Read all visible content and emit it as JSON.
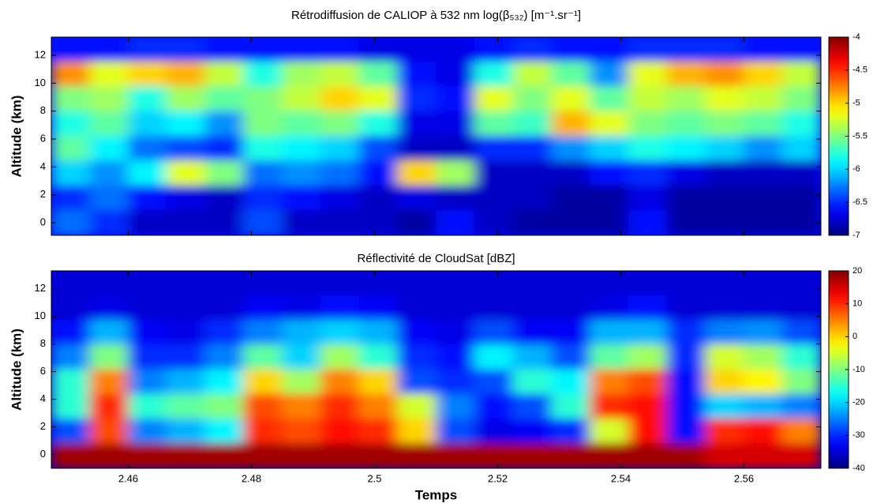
{
  "chart_data": [
    {
      "type": "heatmap",
      "title": "Rétrodiffusion de CALIOP à 532 nm log(β₅₃₂) [m⁻¹.sr⁻¹]",
      "ylabel": "Altitude (km)",
      "xlim": [
        2.4475,
        2.5725
      ],
      "ylim": [
        -0.9,
        13.3
      ],
      "xticks": [
        2.46,
        2.48,
        2.5,
        2.52,
        2.54,
        2.56
      ],
      "yticks": [
        0,
        2,
        4,
        6,
        8,
        10,
        12
      ],
      "clim": [
        -7,
        -4
      ],
      "cticks": [
        -4,
        -4.5,
        -5,
        -5.5,
        -6,
        -6.5,
        -7
      ],
      "colormap": "jet",
      "z": [
        [
          -6.6,
          -6.6,
          -6.5,
          -6.5,
          -6.6,
          -6.6,
          -6.6,
          -6.6,
          -6.7,
          -6.7,
          -6.7,
          -6.6,
          -6.5,
          -6.6,
          -6.6,
          -6.5,
          -6.5,
          -6.5,
          -6.6,
          -6.6
        ],
        [
          -4.8,
          -5.2,
          -5.0,
          -4.9,
          -5.3,
          -5.8,
          -5.4,
          -5.3,
          -5.6,
          -6.6,
          -6.7,
          -5.8,
          -5.3,
          -5.6,
          -6.2,
          -5.2,
          -4.9,
          -4.8,
          -5.0,
          -5.3
        ],
        [
          -5.5,
          -5.4,
          -5.8,
          -5.4,
          -5.6,
          -5.5,
          -5.3,
          -5.0,
          -5.2,
          -6.5,
          -6.6,
          -5.2,
          -5.5,
          -5.2,
          -5.6,
          -5.3,
          -5.4,
          -5.2,
          -5.3,
          -5.5
        ],
        [
          -5.8,
          -5.6,
          -6.0,
          -5.9,
          -6.2,
          -5.5,
          -5.6,
          -5.5,
          -5.8,
          -6.7,
          -6.7,
          -5.6,
          -5.7,
          -4.9,
          -5.2,
          -5.5,
          -5.6,
          -5.5,
          -5.6,
          -5.8
        ],
        [
          -5.6,
          -5.9,
          -6.3,
          -6.4,
          -6.5,
          -5.8,
          -5.9,
          -6.0,
          -6.4,
          -6.8,
          -6.8,
          -6.5,
          -6.5,
          -6.2,
          -6.0,
          -5.8,
          -5.9,
          -6.0,
          -6.2,
          -6.0
        ],
        [
          -6.0,
          -6.2,
          -5.9,
          -5.2,
          -5.5,
          -6.3,
          -6.2,
          -6.3,
          -6.6,
          -5.0,
          -5.4,
          -6.8,
          -6.8,
          -6.8,
          -6.6,
          -6.5,
          -6.7,
          -6.8,
          -6.8,
          -6.8
        ],
        [
          -6.5,
          -6.3,
          -6.6,
          -6.7,
          -6.8,
          -6.5,
          -6.6,
          -6.7,
          -6.8,
          -6.7,
          -6.8,
          -6.8,
          -6.8,
          -6.9,
          -6.9,
          -6.7,
          -6.9,
          -6.9,
          -6.9,
          -6.9
        ],
        [
          -6.3,
          -6.5,
          -6.8,
          -6.8,
          -6.8,
          -6.4,
          -6.8,
          -6.8,
          -6.8,
          -6.9,
          -6.6,
          -6.8,
          -6.9,
          -6.9,
          -6.9,
          -6.6,
          -6.9,
          -6.9,
          -6.9,
          -6.9
        ]
      ]
    },
    {
      "type": "heatmap",
      "title": "Réflectivité de CloudSat [dBZ]",
      "ylabel": "Altitude (km)",
      "xlabel": "Temps",
      "xlim": [
        2.4475,
        2.5725
      ],
      "ylim": [
        -1,
        13.3
      ],
      "xticks": [
        2.46,
        2.48,
        2.5,
        2.52,
        2.54,
        2.56
      ],
      "yticks": [
        0,
        2,
        4,
        6,
        8,
        10,
        12
      ],
      "clim": [
        -40,
        20
      ],
      "cticks": [
        20,
        10,
        0,
        -10,
        -20,
        -30,
        -40
      ],
      "colormap": "jet",
      "z": [
        [
          -35,
          -35,
          -35,
          -35,
          -35,
          -35,
          -35,
          -35,
          -35,
          -35,
          -35,
          -35,
          -35,
          -35,
          -35,
          -35,
          -35,
          -35,
          -35,
          -35
        ],
        [
          -35,
          -34,
          -35,
          -35,
          -35,
          -33,
          -34,
          -32,
          -33,
          -35,
          -35,
          -35,
          -35,
          -35,
          -34,
          -32,
          -35,
          -35,
          -35,
          -35
        ],
        [
          -32,
          -22,
          -33,
          -34,
          -30,
          -25,
          -22,
          -20,
          -22,
          -33,
          -34,
          -28,
          -33,
          -33,
          -22,
          -22,
          -30,
          -25,
          -24,
          -28
        ],
        [
          -25,
          -10,
          -30,
          -30,
          -25,
          -12,
          -20,
          -8,
          -15,
          -30,
          -32,
          -18,
          -22,
          -28,
          -12,
          -8,
          -30,
          -5,
          -8,
          -15
        ],
        [
          -15,
          5,
          -25,
          -22,
          -18,
          0,
          -8,
          5,
          0,
          -28,
          -30,
          -28,
          -15,
          -18,
          5,
          8,
          -32,
          0,
          -2,
          -10
        ],
        [
          -15,
          10,
          -15,
          -12,
          -10,
          8,
          5,
          10,
          5,
          -5,
          -25,
          -32,
          -28,
          -15,
          10,
          12,
          -32,
          -20,
          -22,
          -25
        ],
        [
          -28,
          8,
          -25,
          -22,
          -18,
          10,
          8,
          12,
          10,
          0,
          -28,
          -34,
          -33,
          -30,
          -5,
          12,
          -32,
          10,
          12,
          5
        ],
        [
          18,
          18,
          18,
          18,
          18,
          18,
          18,
          18,
          18,
          18,
          18,
          18,
          18,
          18,
          18,
          18,
          18,
          15,
          15,
          15
        ]
      ]
    }
  ]
}
